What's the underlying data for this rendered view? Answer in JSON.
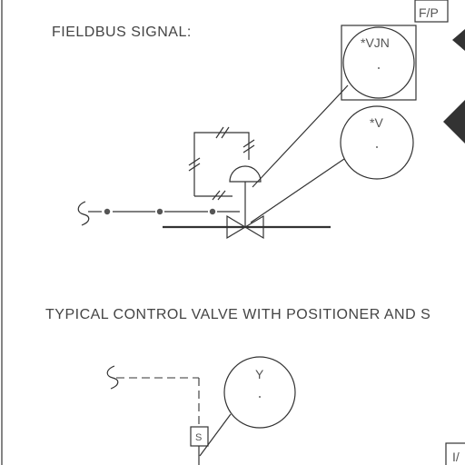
{
  "diagram": {
    "heading_fieldbus": "FIELDBUS SIGNAL:",
    "heading_positioner": "TYPICAL CONTROL VALVE WITH POSITIONER AND S",
    "box_top_right": "F/P",
    "box_bottom_right": "I/",
    "tag_vjn": "*VJN",
    "tag_v": "*V",
    "tag_y": "Y",
    "tag_s": "S"
  },
  "colors": {
    "line": "#333333",
    "text": "#444444",
    "background": "#ffffff"
  }
}
